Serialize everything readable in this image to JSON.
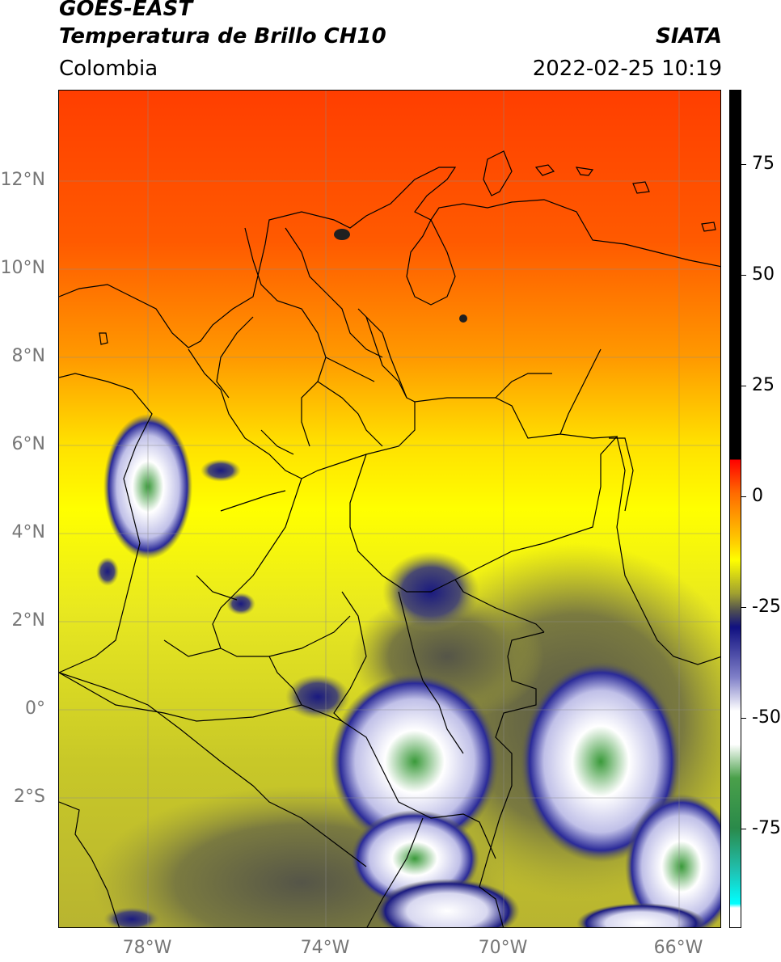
{
  "header": {
    "line1": "GOES-EAST",
    "line2": "Temperatura de Brillo CH10",
    "region": "Colombia",
    "source": "SIATA",
    "datetime": "2022-02-25 10:19"
  },
  "map": {
    "lat_ticks": [
      "12°N",
      "10°N",
      "8°N",
      "6°N",
      "4°N",
      "2°N",
      "0°",
      "2°S"
    ],
    "lon_ticks": [
      "78°W",
      "74°W",
      "70°W",
      "66°W"
    ],
    "colors": {
      "warm_top": "#ff3b00",
      "orange": "#ff8a00",
      "yellow": "#ffff00",
      "olive": "#b8b830",
      "dark_olive": "#6a6a40",
      "navy": "#101070",
      "blue": "#3a3aa8",
      "white": "#ffffff",
      "green": "#3a9a3a",
      "border": "#000000"
    }
  },
  "colorbar": {
    "ticks": [
      "75",
      "50",
      "25",
      "0",
      "-25",
      "-50",
      "-75"
    ],
    "stops": [
      {
        "value": 90,
        "color": "#000000"
      },
      {
        "value": 8,
        "color": "#000000"
      },
      {
        "value": 7.9,
        "color": "#ff0000"
      },
      {
        "value": 0,
        "color": "#ff6a00"
      },
      {
        "value": -10,
        "color": "#ffff00"
      },
      {
        "value": -20,
        "color": "#8a8a30"
      },
      {
        "value": -25,
        "color": "#505050"
      },
      {
        "value": -28,
        "color": "#101080"
      },
      {
        "value": -40,
        "color": "#ffffff"
      },
      {
        "value": -55,
        "color": "#ffffff"
      },
      {
        "value": -65,
        "color": "#2a8a2a"
      },
      {
        "value": -80,
        "color": "#20b0a0"
      },
      {
        "value": -90,
        "color": "#00ffff"
      },
      {
        "value": -91,
        "color": "#ffffff"
      }
    ]
  }
}
